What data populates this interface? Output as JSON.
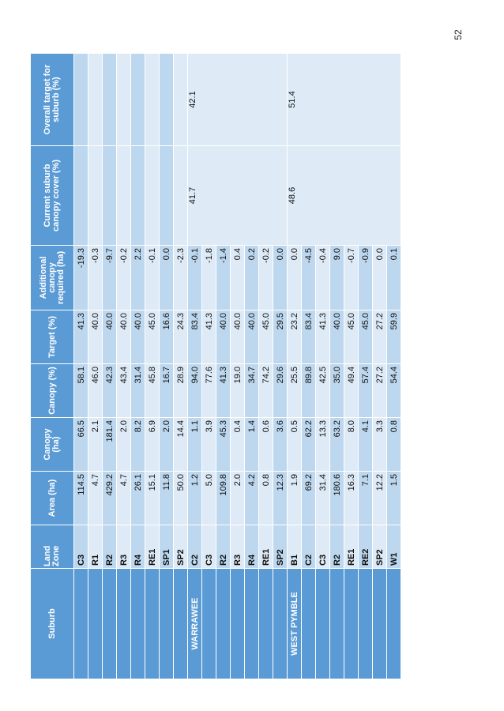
{
  "page": {
    "number": "52"
  },
  "headers": {
    "suburb": "Suburb",
    "land_zone": "Land Zone",
    "area": "Area (ha)",
    "canopy_ha": "Canopy (ha)",
    "canopy_pct": "Canopy (%)",
    "target": "Target (%)",
    "additional": "Additional canopy required (ha)",
    "current": "Current suburb canopy cover (%)",
    "overall": "Overall target for suburb (%)"
  },
  "groups": [
    {
      "suburb": "",
      "current": "",
      "overall": "",
      "rows": [
        {
          "zone": "C3",
          "area": "114.5",
          "canopy_ha": "66.5",
          "canopy_pct": "58.1",
          "target": "41.3",
          "additional": "-19.3"
        },
        {
          "zone": "R1",
          "area": "4.7",
          "canopy_ha": "2.1",
          "canopy_pct": "46.0",
          "target": "40.0",
          "additional": "-0.3"
        },
        {
          "zone": "R2",
          "area": "429.2",
          "canopy_ha": "181.4",
          "canopy_pct": "42.3",
          "target": "40.0",
          "additional": "-9.7"
        },
        {
          "zone": "R3",
          "area": "4.7",
          "canopy_ha": "2.0",
          "canopy_pct": "43.4",
          "target": "40.0",
          "additional": "-0.2"
        },
        {
          "zone": "R4",
          "area": "26.1",
          "canopy_ha": "8.2",
          "canopy_pct": "31.4",
          "target": "40.0",
          "additional": "2.2"
        },
        {
          "zone": "RE1",
          "area": "15.1",
          "canopy_ha": "6.9",
          "canopy_pct": "45.8",
          "target": "45.0",
          "additional": "-0.1"
        },
        {
          "zone": "SP1",
          "area": "11.8",
          "canopy_ha": "2.0",
          "canopy_pct": "16.7",
          "target": "16.6",
          "additional": "0.0"
        },
        {
          "zone": "SP2",
          "area": "50.0",
          "canopy_ha": "14.4",
          "canopy_pct": "28.9",
          "target": "24.3",
          "additional": "-2.3"
        }
      ]
    },
    {
      "suburb": "WARRAWEE",
      "current": "41.7",
      "overall": "42.1",
      "rows": [
        {
          "zone": "C2",
          "area": "1.2",
          "canopy_ha": "1.1",
          "canopy_pct": "94.0",
          "target": "83.4",
          "additional": "-0.1"
        },
        {
          "zone": "C3",
          "area": "5.0",
          "canopy_ha": "3.9",
          "canopy_pct": "77.6",
          "target": "41.3",
          "additional": "-1.8"
        },
        {
          "zone": "R2",
          "area": "109.8",
          "canopy_ha": "45.3",
          "canopy_pct": "41.3",
          "target": "40.0",
          "additional": "-1.4"
        },
        {
          "zone": "R3",
          "area": "2.0",
          "canopy_ha": "0.4",
          "canopy_pct": "19.0",
          "target": "40.0",
          "additional": "0.4"
        },
        {
          "zone": "R4",
          "area": "4.2",
          "canopy_ha": "1.4",
          "canopy_pct": "34.7",
          "target": "40.0",
          "additional": "0.2"
        },
        {
          "zone": "RE1",
          "area": "0.8",
          "canopy_ha": "0.6",
          "canopy_pct": "74.2",
          "target": "45.0",
          "additional": "-0.2"
        },
        {
          "zone": "SP2",
          "area": "12.3",
          "canopy_ha": "3.6",
          "canopy_pct": "29.6",
          "target": "29.5",
          "additional": "0.0"
        }
      ]
    },
    {
      "suburb": "WEST PYMBLE",
      "current": "48.6",
      "overall": "51.4",
      "rows": [
        {
          "zone": "B1",
          "area": "1.9",
          "canopy_ha": "0.5",
          "canopy_pct": "25.5",
          "target": "23.2",
          "additional": "0.0"
        },
        {
          "zone": "C2",
          "area": "69.2",
          "canopy_ha": "62.2",
          "canopy_pct": "89.8",
          "target": "83.4",
          "additional": "-4.5"
        },
        {
          "zone": "C3",
          "area": "31.4",
          "canopy_ha": "13.3",
          "canopy_pct": "42.5",
          "target": "41.3",
          "additional": "-0.4"
        },
        {
          "zone": "R2",
          "area": "180.6",
          "canopy_ha": "63.2",
          "canopy_pct": "35.0",
          "target": "40.0",
          "additional": "9.0"
        },
        {
          "zone": "RE1",
          "area": "16.3",
          "canopy_ha": "8.0",
          "canopy_pct": "49.4",
          "target": "45.0",
          "additional": "-0.7"
        },
        {
          "zone": "RE2",
          "area": "7.1",
          "canopy_ha": "4.1",
          "canopy_pct": "57.4",
          "target": "45.0",
          "additional": "-0.9"
        },
        {
          "zone": "SP2",
          "area": "12.2",
          "canopy_ha": "3.3",
          "canopy_pct": "27.2",
          "target": "27.2",
          "additional": "0.0"
        },
        {
          "zone": "W1",
          "area": "1.5",
          "canopy_ha": "0.8",
          "canopy_pct": "54.4",
          "target": "59.9",
          "additional": "0.1"
        }
      ]
    }
  ]
}
